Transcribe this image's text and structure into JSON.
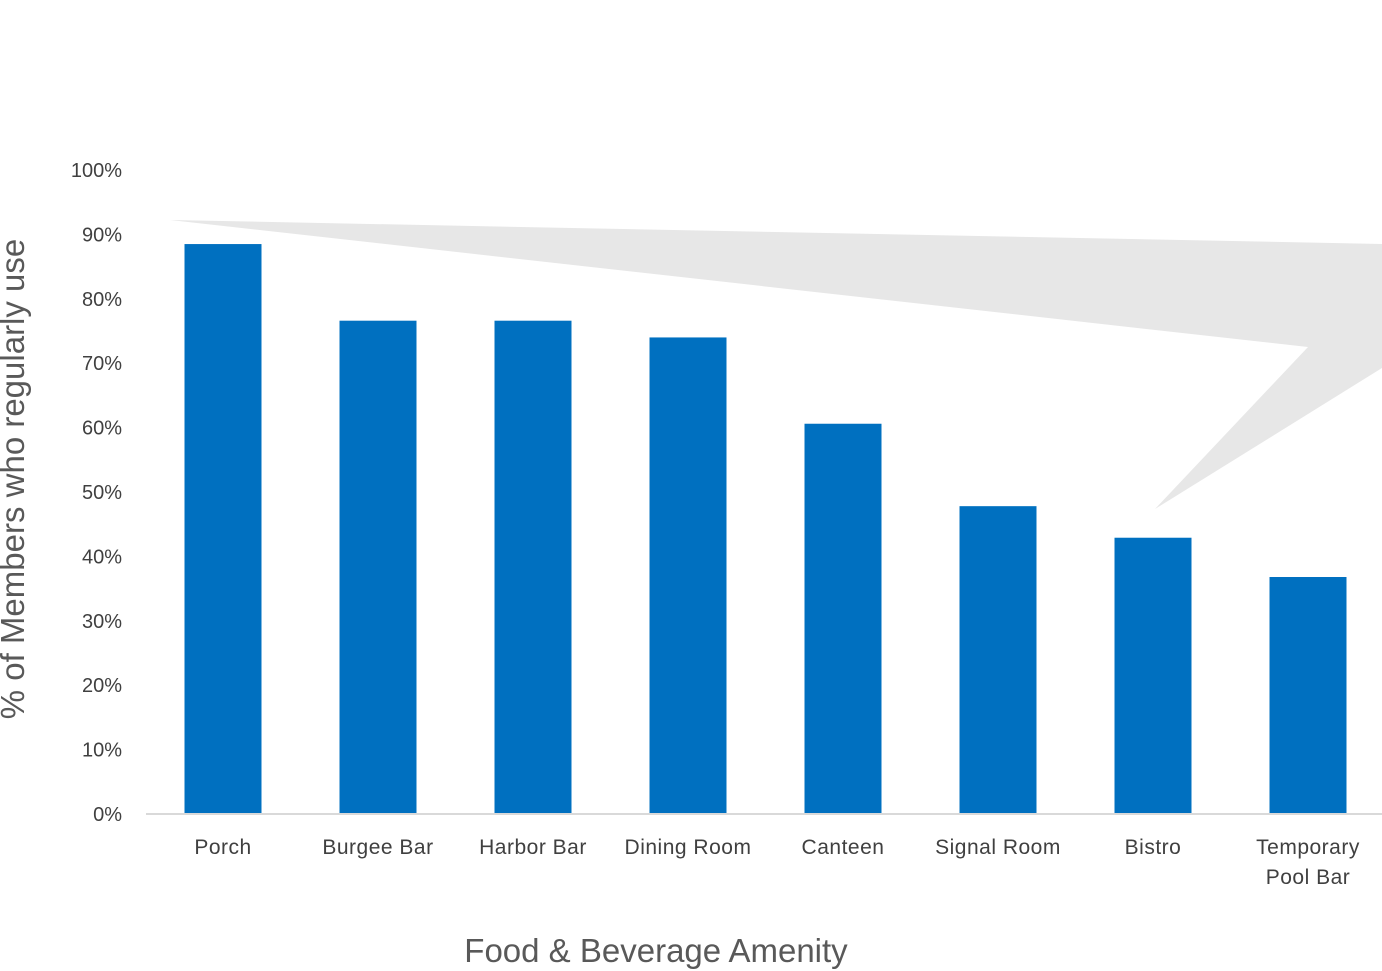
{
  "colors": {
    "bar": "#0070C0",
    "axis_line": "#D9D9D9",
    "callout": "#E7E7E7",
    "tick_text": "#404040",
    "title_text": "#595959"
  },
  "chart_data": {
    "type": "bar",
    "categories": [
      [
        "Porch"
      ],
      [
        "Burgee Bar"
      ],
      [
        "Harbor Bar"
      ],
      [
        "Dining Room"
      ],
      [
        "Canteen"
      ],
      [
        "Signal Room"
      ],
      [
        "Bistro"
      ],
      [
        "Temporary",
        "Pool Bar"
      ]
    ],
    "values": [
      88.5,
      76.6,
      76.6,
      74.0,
      60.6,
      47.8,
      42.9,
      36.8
    ],
    "xlabel": "Food & Beverage Amenity",
    "ylabel": "% of Members who regularly use",
    "ylim": [
      0,
      100
    ],
    "yticks": [
      0,
      10,
      20,
      30,
      40,
      50,
      60,
      70,
      80,
      90,
      100
    ],
    "ytick_format": "{v}%",
    "grid": false,
    "legend": "none",
    "annotation": "grey callout shape pointing toward Bistro"
  }
}
